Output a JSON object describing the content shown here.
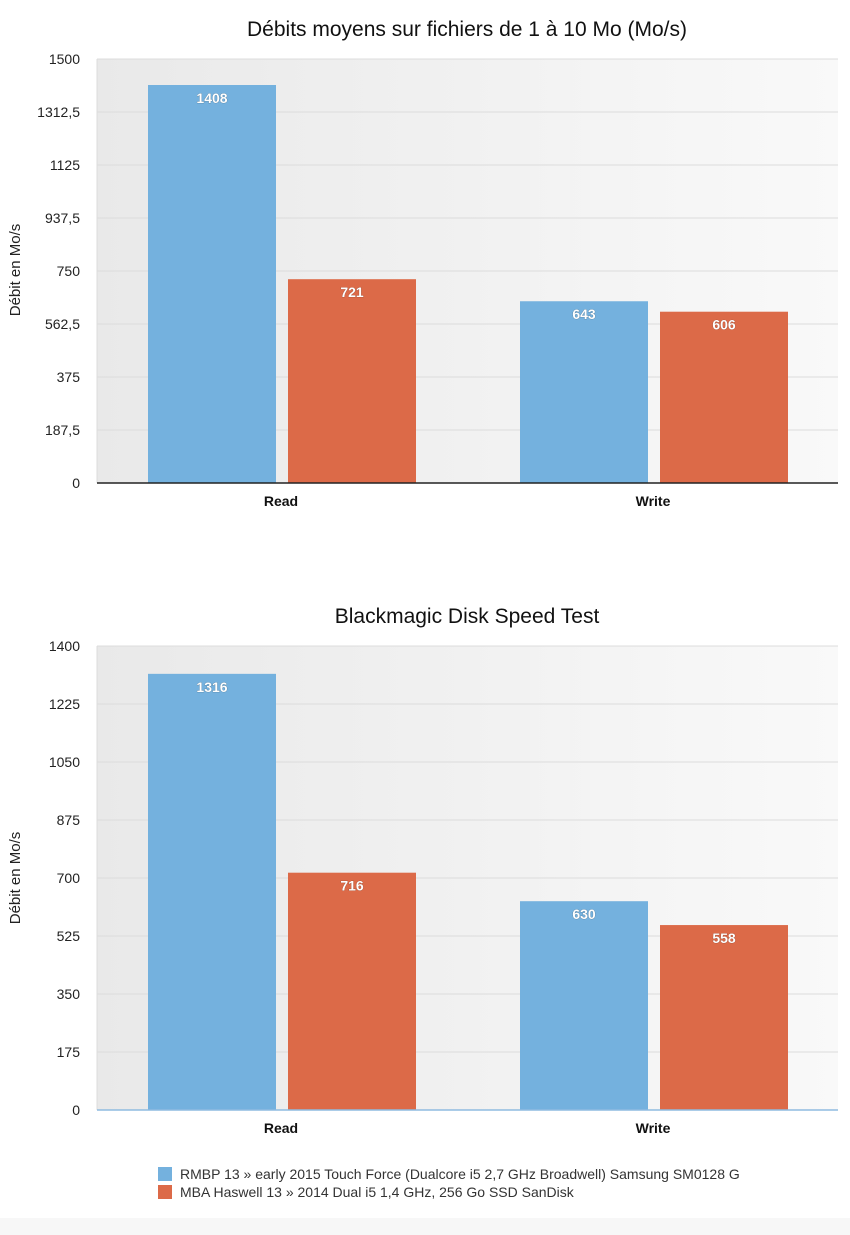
{
  "chart_data": [
    {
      "type": "bar",
      "title": "Débits moyens sur fichiers de 1 à 10 Mo (Mo/s)",
      "ylabel": "Débit en Mo/s",
      "xlabel": "",
      "categories": [
        "Read",
        "Write"
      ],
      "ylim": [
        0,
        1500
      ],
      "yticks": [
        "0",
        "187,5",
        "375",
        "562,5",
        "750",
        "937,5",
        "1125",
        "1312,5",
        "1500"
      ],
      "ytick_values": [
        0,
        187.5,
        375,
        562.5,
        750,
        937.5,
        1125,
        1312.5,
        1500
      ],
      "grid": true,
      "series": [
        {
          "name": "RMBP 13 » early 2015 Touch Force (Dualcore i5 2,7 GHz Broadwell) Samsung SM0128 G",
          "values": [
            1408,
            643
          ],
          "color": "#74b1de"
        },
        {
          "name": "MBA Haswell 13 » 2014  Dual i5 1,4 GHz, 256 Go SSD SanDisk",
          "values": [
            721,
            606
          ],
          "color": "#dc6a48"
        }
      ],
      "data_labels": [
        [
          "1408",
          "643"
        ],
        [
          "721",
          "606"
        ]
      ]
    },
    {
      "type": "bar",
      "title": "Blackmagic Disk Speed Test",
      "ylabel": "Débit en Mo/s",
      "xlabel": "",
      "categories": [
        "Read",
        "Write"
      ],
      "ylim": [
        0,
        1400
      ],
      "yticks": [
        "0",
        "175",
        "350",
        "525",
        "700",
        "875",
        "1050",
        "1225",
        "1400"
      ],
      "ytick_values": [
        0,
        175,
        350,
        525,
        700,
        875,
        1050,
        1225,
        1400
      ],
      "grid": true,
      "series": [
        {
          "name": "RMBP 13 » early 2015 Touch Force (Dualcore i5 2,7 GHz Broadwell) Samsung SM0128 G",
          "values": [
            1316,
            630
          ],
          "color": "#74b1de"
        },
        {
          "name": "MBA Haswell 13 » 2014  Dual i5 1,4 GHz, 256 Go SSD SanDisk",
          "values": [
            716,
            558
          ],
          "color": "#dc6a48"
        }
      ],
      "data_labels": [
        [
          "1316",
          "630"
        ],
        [
          "716",
          "558"
        ]
      ]
    }
  ],
  "legend": {
    "placement": "bottom",
    "items": [
      {
        "label": "RMBP 13 » early 2015 Touch Force (Dualcore i5 2,7 GHz Broadwell) Samsung SM0128 G",
        "color": "#74b1de"
      },
      {
        "label": "MBA Haswell 13 » 2014  Dual i5 1,4 GHz, 256 Go SSD SanDisk",
        "color": "#dc6a48"
      }
    ]
  }
}
